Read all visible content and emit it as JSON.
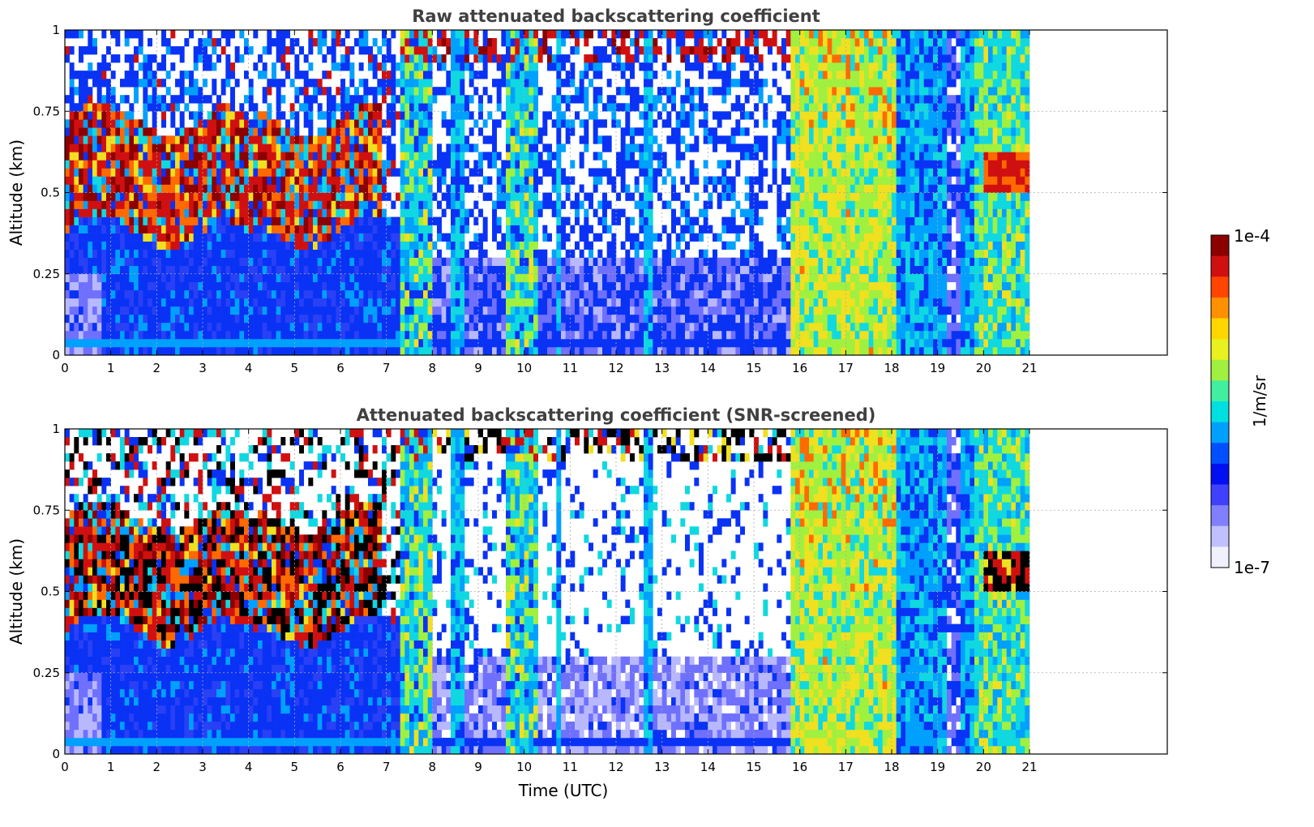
{
  "chart_data": [
    {
      "type": "heatmap",
      "title": "Raw attenuated backscattering coefficient",
      "xlabel": "",
      "ylabel": "Altitude (km)",
      "xlim": [
        0,
        24
      ],
      "ylim": [
        0,
        1
      ],
      "x_ticks": [
        "0",
        "1",
        "2",
        "3",
        "4",
        "5",
        "6",
        "7",
        "8",
        "9",
        "10",
        "11",
        "12",
        "13",
        "14",
        "15",
        "16",
        "17",
        "18",
        "19",
        "20",
        "21"
      ],
      "y_ticks": [
        "0",
        "0.25",
        "0.5",
        "0.75",
        "1"
      ],
      "data_coverage_hours": [
        0,
        21
      ],
      "grid": true,
      "segments": [
        {
          "x": [
            0,
            7.3
          ],
          "surface": "blue",
          "boundary_layer_top_km": 0.38,
          "aerosol": "red",
          "above": "sparse"
        },
        {
          "x": [
            7.3,
            8.0
          ],
          "surface": "cyan",
          "column": "cyan"
        },
        {
          "x": [
            8.0,
            9.6
          ],
          "surface": "blue",
          "above": "sparse",
          "column": "cyan-streaks"
        },
        {
          "x": [
            9.6,
            10.3
          ],
          "surface": "cyan",
          "column": "cyan"
        },
        {
          "x": [
            10.3,
            15.8
          ],
          "surface": "blue",
          "above": "sparse",
          "cloud_top": "red"
        },
        {
          "x": [
            15.8,
            18.1
          ],
          "surface": "green",
          "column": "yellow-green"
        },
        {
          "x": [
            18.1,
            19.8
          ],
          "surface": "blue",
          "column": "cyan"
        },
        {
          "x": [
            19.8,
            21.0
          ],
          "surface": "cyan",
          "column": "green",
          "layer_km": 0.55
        }
      ]
    },
    {
      "type": "heatmap",
      "title": "Attenuated backscattering coefficient (SNR-screened)",
      "xlabel": "Time (UTC)",
      "ylabel": "Altitude (km)",
      "xlim": [
        0,
        24
      ],
      "ylim": [
        0,
        1
      ],
      "x_ticks": [
        "0",
        "1",
        "2",
        "3",
        "4",
        "5",
        "6",
        "7",
        "8",
        "9",
        "10",
        "11",
        "12",
        "13",
        "14",
        "15",
        "16",
        "17",
        "18",
        "19",
        "20",
        "21"
      ],
      "y_ticks": [
        "0",
        "0.25",
        "0.5",
        "0.75",
        "1"
      ],
      "data_coverage_hours": [
        0,
        21
      ],
      "grid": true
    }
  ],
  "colorbar": {
    "label": "1/m/sr",
    "max_label": "1e-4",
    "min_label": "1e-7",
    "colormap": [
      "#8b0000",
      "#d01010",
      "#ff4500",
      "#ff9000",
      "#ffd700",
      "#e8f020",
      "#a0f040",
      "#40f0a0",
      "#00e0e0",
      "#00a0ff",
      "#0050ff",
      "#0010f0",
      "#4040ff",
      "#8080ff",
      "#c0c0ff",
      "#f0f0ff"
    ]
  }
}
